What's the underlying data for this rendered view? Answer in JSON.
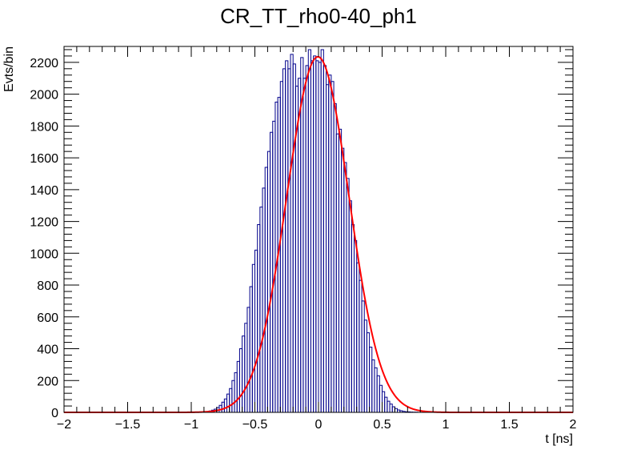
{
  "chart_data": {
    "type": "histogram",
    "title": "CR_TT_rho0-40_ph1",
    "xlabel": "t [ns]",
    "ylabel": "Evts/bin",
    "xlim": [
      -2,
      2
    ],
    "ylim": [
      0,
      2300
    ],
    "x_ticks": [
      {
        "value": -2,
        "label": "−2"
      },
      {
        "value": -1.5,
        "label": "−1.5"
      },
      {
        "value": -1,
        "label": "−1"
      },
      {
        "value": -0.5,
        "label": "−0.5"
      },
      {
        "value": 0,
        "label": "0"
      },
      {
        "value": 0.5,
        "label": "0.5"
      },
      {
        "value": 1,
        "label": "1"
      },
      {
        "value": 1.5,
        "label": "1.5"
      },
      {
        "value": 2,
        "label": "2"
      }
    ],
    "y_ticks": [
      {
        "value": 0,
        "label": "0"
      },
      {
        "value": 200,
        "label": "200"
      },
      {
        "value": 400,
        "label": "400"
      },
      {
        "value": 600,
        "label": "600"
      },
      {
        "value": 800,
        "label": "800"
      },
      {
        "value": 1000,
        "label": "1000"
      },
      {
        "value": 1200,
        "label": "1200"
      },
      {
        "value": 1400,
        "label": "1400"
      },
      {
        "value": 1600,
        "label": "1600"
      },
      {
        "value": 1800,
        "label": "1800"
      },
      {
        "value": 2000,
        "label": "2000"
      },
      {
        "value": 2200,
        "label": "2200"
      }
    ],
    "histogram": {
      "color": "#00008b",
      "bin_width": 0.02,
      "bin_centers": [
        -0.89,
        -0.87,
        -0.85,
        -0.83,
        -0.81,
        -0.79,
        -0.77,
        -0.75,
        -0.73,
        -0.71,
        -0.69,
        -0.67,
        -0.65,
        -0.63,
        -0.61,
        -0.59,
        -0.57,
        -0.55,
        -0.53,
        -0.51,
        -0.49,
        -0.47,
        -0.45,
        -0.43,
        -0.41,
        -0.39,
        -0.37,
        -0.35,
        -0.33,
        -0.31,
        -0.29,
        -0.27,
        -0.25,
        -0.23,
        -0.21,
        -0.19,
        -0.17,
        -0.15,
        -0.13,
        -0.11,
        -0.09,
        -0.07,
        -0.05,
        -0.03,
        -0.01,
        0.01,
        0.03,
        0.05,
        0.07,
        0.09,
        0.11,
        0.13,
        0.15,
        0.17,
        0.19,
        0.21,
        0.23,
        0.25,
        0.27,
        0.29,
        0.31,
        0.33,
        0.35,
        0.37,
        0.39,
        0.41,
        0.43,
        0.45,
        0.47,
        0.49,
        0.51,
        0.53,
        0.55,
        0.57,
        0.59,
        0.61,
        0.63,
        0.65,
        0.67,
        0.69,
        0.71,
        0.73,
        0.75,
        0.77,
        0.79,
        0.81,
        0.83,
        0.85,
        0.87,
        0.89,
        0.91
      ],
      "values": [
        3,
        5,
        9,
        14,
        20,
        30,
        44,
        64,
        84,
        115,
        150,
        200,
        250,
        320,
        400,
        480,
        560,
        660,
        790,
        930,
        1020,
        1180,
        1290,
        1410,
        1540,
        1640,
        1760,
        1830,
        1950,
        1980,
        2080,
        2160,
        2210,
        2160,
        2250,
        2190,
        2050,
        2100,
        2230,
        2100,
        2180,
        2280,
        2210,
        2240,
        2210,
        2200,
        2280,
        2180,
        2060,
        2120,
        2080,
        1940,
        1750,
        1780,
        1660,
        1570,
        1470,
        1330,
        1180,
        1080,
        940,
        830,
        700,
        580,
        500,
        410,
        330,
        280,
        230,
        170,
        130,
        95,
        70,
        52,
        35,
        24,
        15,
        10,
        6,
        4,
        3,
        2,
        1,
        1,
        0,
        0,
        0,
        0,
        0,
        0,
        0
      ]
    },
    "fit": {
      "color": "#ff0000",
      "function": "gaussian",
      "amplitude": 2235,
      "mean": -0.005,
      "sigma": 0.245
    }
  }
}
